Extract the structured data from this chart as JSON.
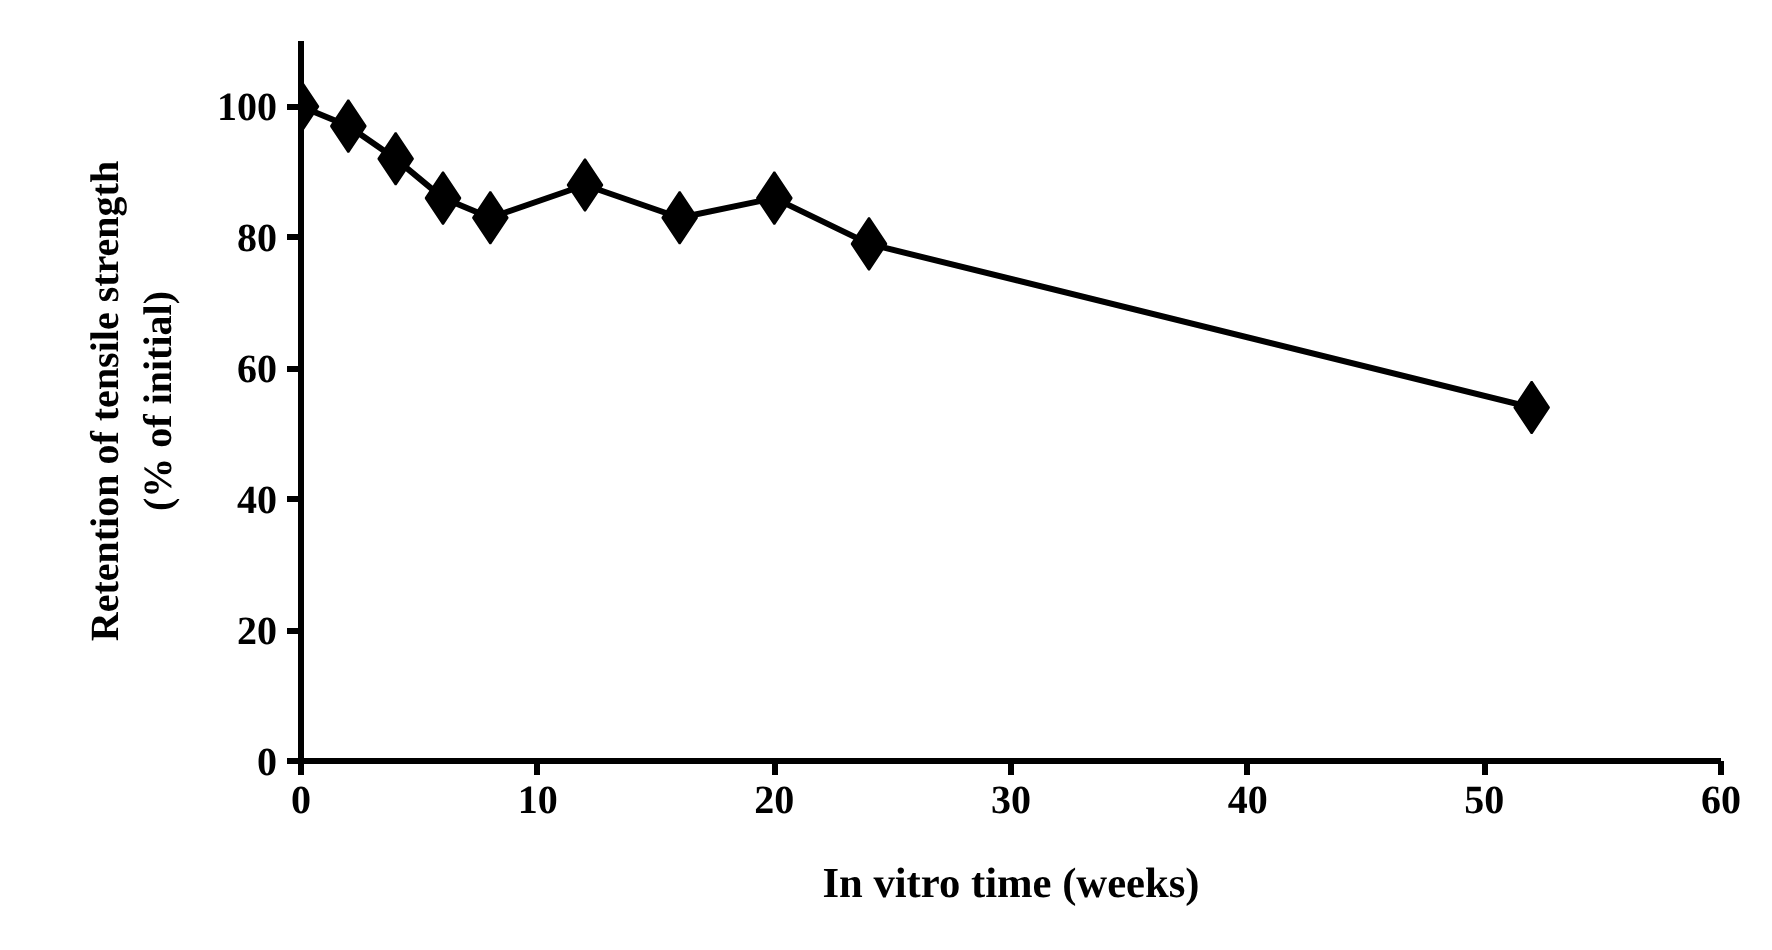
{
  "chart_data": {
    "type": "line",
    "xlabel": "In vitro time (weeks)",
    "ylabel": "Retention of tensile strength\n(% of initial)",
    "x": [
      0,
      2,
      4,
      6,
      8,
      12,
      16,
      20,
      24,
      52
    ],
    "series": [
      {
        "color": "#000000",
        "values": [
          100,
          97,
          92,
          86,
          83,
          88,
          83,
          86,
          79,
          54
        ]
      }
    ],
    "xlim": [
      0,
      60
    ],
    "xticks": [
      0,
      10,
      20,
      30,
      40,
      50,
      60
    ],
    "ylim": [
      0,
      110
    ],
    "yticks": [
      0,
      20,
      40,
      60,
      80,
      100
    ],
    "grid": false,
    "marker": "diamond",
    "line_style": "solid"
  }
}
